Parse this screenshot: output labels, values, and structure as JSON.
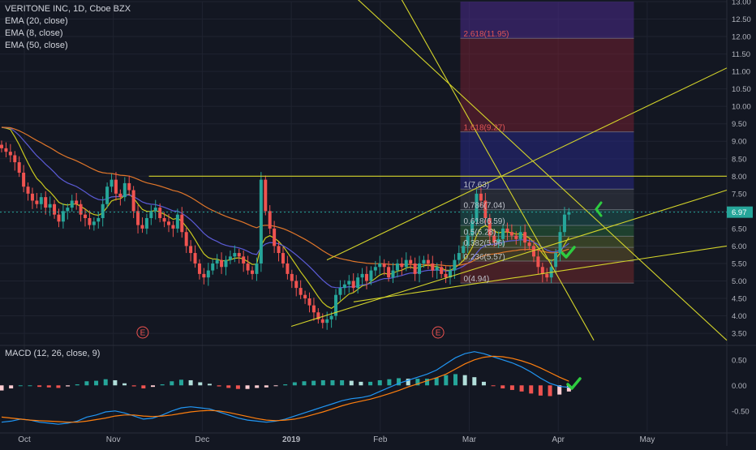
{
  "header": {
    "symbol_title": "VERITONE INC, 1D, Cboe BZX",
    "indicators": [
      "EMA (20, close)",
      "EMA (8, close)",
      "EMA (50, close)"
    ]
  },
  "macd_label": "MACD (12, 26, close, 9)",
  "colors": {
    "background": "#131722",
    "up": "#26a69a",
    "down": "#ef5350",
    "ema8": "#c8c81e",
    "ema20": "#5b5bd6",
    "ema50": "#e0762a",
    "trendline": "#d4d42a",
    "macd_line": "#2196f3",
    "signal_line": "#ff7f0e",
    "check": "#2ecc40",
    "price_tag": "#26a69a"
  },
  "chart_data": {
    "type": "candlestick",
    "title": "VERITONE INC, 1D, Cboe BZX",
    "price_axis": {
      "ylim": [
        3.2,
        13.0
      ],
      "ticks": [
        "3.50",
        "4.00",
        "4.50",
        "5.00",
        "5.50",
        "6.00",
        "6.50",
        "7.00",
        "7.50",
        "8.00",
        "8.50",
        "9.00",
        "9.50",
        "10.00",
        "10.50",
        "11.00",
        "11.50",
        "12.00",
        "12.50",
        "13.00"
      ]
    },
    "time_axis": {
      "labels": [
        "Oct",
        "Nov",
        "Dec",
        "2019",
        "Feb",
        "Mar",
        "Apr",
        "May"
      ],
      "label_positions_months": [
        0,
        1,
        2,
        3,
        4,
        5,
        6,
        7
      ]
    },
    "last_price": "6.97",
    "close_series_approx": [
      8.8,
      8.7,
      8.6,
      8.4,
      8.1,
      7.7,
      7.5,
      7.3,
      7.2,
      7.4,
      7.1,
      7.2,
      6.9,
      6.7,
      7.0,
      7.1,
      7.3,
      7.2,
      6.9,
      6.8,
      6.6,
      6.7,
      6.8,
      7.2,
      7.7,
      7.9,
      7.5,
      7.4,
      7.8,
      7.6,
      7.0,
      6.6,
      6.5,
      6.8,
      7.0,
      7.1,
      6.8,
      6.7,
      6.6,
      6.5,
      6.9,
      6.4,
      6.0,
      5.8,
      5.5,
      5.2,
      5.1,
      5.3,
      5.5,
      5.6,
      5.4,
      5.6,
      5.7,
      5.8,
      5.7,
      5.5,
      5.3,
      5.2,
      5.5,
      7.9,
      7.0,
      6.5,
      6.0,
      5.8,
      5.5,
      5.2,
      5.0,
      4.8,
      4.6,
      4.5,
      4.3,
      4.1,
      3.9,
      3.8,
      3.9,
      4.0,
      4.6,
      4.8,
      4.9,
      5.0,
      4.8,
      5.1,
      5.2,
      5.0,
      5.3,
      5.4,
      5.5,
      5.4,
      5.1,
      5.3,
      5.5,
      5.4,
      5.6,
      5.5,
      5.2,
      5.5,
      5.6,
      5.5,
      5.3,
      5.4,
      5.2,
      5.1,
      5.3,
      5.6,
      5.8,
      6.0,
      6.3,
      6.7,
      7.5,
      7.3,
      6.8,
      6.3,
      6.1,
      6.2,
      6.5,
      6.4,
      6.3,
      6.2,
      6.4,
      6.1,
      6.0,
      5.7,
      5.4,
      5.2,
      5.1,
      5.4,
      5.8,
      6.4,
      6.9,
      6.97
    ],
    "markers": [
      {
        "label": "E",
        "month_pos": 1.33
      },
      {
        "label": "E",
        "month_pos": 4.65
      }
    ],
    "fibonacci": {
      "levels": [
        {
          "label": "2.618(11.95)",
          "value": 11.95
        },
        {
          "label": "1.618(9.27)",
          "value": 9.27
        },
        {
          "label": "1(7.63)",
          "value": 7.63
        },
        {
          "label": "0.786(7.04)",
          "value": 7.04
        },
        {
          "label": "0.618(6.59)",
          "value": 6.59
        },
        {
          "label": "0.5(6.28)",
          "value": 6.28
        },
        {
          "label": "0.382(5.96)",
          "value": 5.96
        },
        {
          "label": "0.236(5.57)",
          "value": 5.57
        },
        {
          "label": "0(4.94)",
          "value": 4.94
        }
      ]
    },
    "horizontal_line": 8.0,
    "macd": {
      "label": "MACD (12, 26, close, 9)",
      "ticks": [
        "0.50",
        "0.00",
        "-0.50"
      ],
      "ylim": [
        -0.9,
        0.75
      ],
      "macd_line": [
        -0.72,
        -0.7,
        -0.66,
        -0.68,
        -0.72,
        -0.74,
        -0.76,
        -0.74,
        -0.7,
        -0.62,
        -0.58,
        -0.52,
        -0.5,
        -0.54,
        -0.6,
        -0.66,
        -0.64,
        -0.58,
        -0.5,
        -0.44,
        -0.42,
        -0.44,
        -0.46,
        -0.52,
        -0.58,
        -0.64,
        -0.68,
        -0.7,
        -0.72,
        -0.7,
        -0.66,
        -0.6,
        -0.54,
        -0.48,
        -0.42,
        -0.36,
        -0.3,
        -0.26,
        -0.24,
        -0.2,
        -0.12,
        -0.04,
        0.04,
        0.1,
        0.16,
        0.22,
        0.3,
        0.42,
        0.54,
        0.62,
        0.66,
        0.62,
        0.56,
        0.5,
        0.44,
        0.36,
        0.26,
        0.14,
        0.04,
        -0.02,
        -0.04
      ],
      "signal_line": [
        -0.62,
        -0.64,
        -0.66,
        -0.68,
        -0.69,
        -0.7,
        -0.71,
        -0.72,
        -0.72,
        -0.7,
        -0.67,
        -0.64,
        -0.6,
        -0.58,
        -0.58,
        -0.6,
        -0.61,
        -0.6,
        -0.58,
        -0.55,
        -0.52,
        -0.5,
        -0.49,
        -0.5,
        -0.53,
        -0.57,
        -0.61,
        -0.65,
        -0.68,
        -0.69,
        -0.68,
        -0.66,
        -0.62,
        -0.57,
        -0.52,
        -0.46,
        -0.4,
        -0.35,
        -0.31,
        -0.27,
        -0.22,
        -0.16,
        -0.1,
        -0.03,
        0.03,
        0.09,
        0.15,
        0.22,
        0.32,
        0.42,
        0.5,
        0.55,
        0.57,
        0.56,
        0.53,
        0.48,
        0.42,
        0.34,
        0.25,
        0.16,
        0.08
      ]
    }
  }
}
